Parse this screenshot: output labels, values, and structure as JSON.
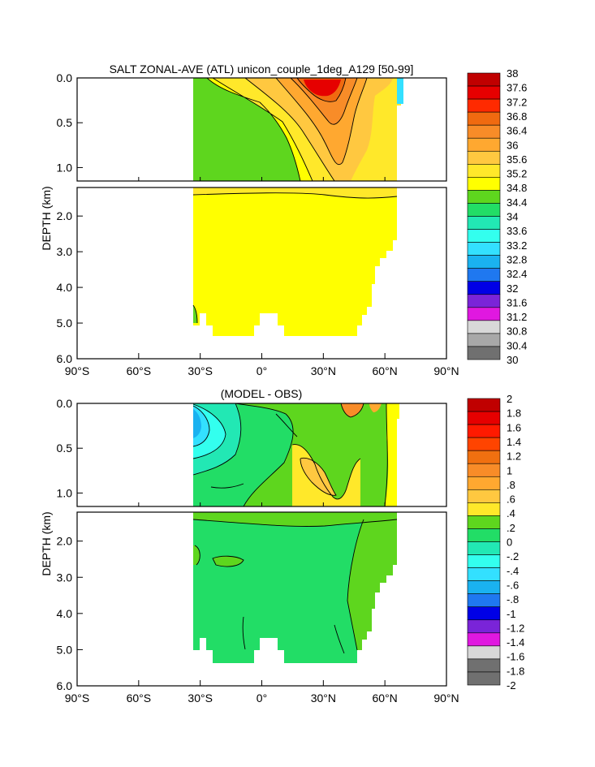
{
  "chart_data": [
    {
      "type": "contour",
      "title": "SALT ZONAL-AVE (ATL) unicon_couple_1deg_A129 [50-99]",
      "ylabel": "DEPTH (km)",
      "xlabel": "",
      "xlim": [
        -90,
        90
      ],
      "ylim_upper_panel": [
        0.0,
        1.15
      ],
      "ylim_lower_panel": [
        1.2,
        6.0
      ],
      "x_ticks": [
        -90,
        -60,
        -30,
        0,
        30,
        60,
        90
      ],
      "x_tick_labels": [
        "90°S",
        "60°S",
        "30°S",
        "0°",
        "30°N",
        "60°N",
        "90°N"
      ],
      "y_ticks_upper": [
        0.0,
        0.5,
        1.0
      ],
      "y_tick_labels_upper": [
        "0.0",
        "0.5",
        "1.0"
      ],
      "y_ticks_lower": [
        2.0,
        3.0,
        4.0,
        5.0,
        6.0
      ],
      "y_tick_labels_lower": [
        "2.0",
        "3.0",
        "4.0",
        "5.0",
        "6.0"
      ],
      "colorbar_levels": [
        "38",
        "37.6",
        "37.2",
        "36.8",
        "36.4",
        "36",
        "35.6",
        "35.2",
        "34.8",
        "34.4",
        "34",
        "33.6",
        "33.2",
        "32.8",
        "32.4",
        "32",
        "31.6",
        "31.2",
        "30.8",
        "30.4",
        "30"
      ],
      "colorbar_colors": [
        "#c00000",
        "#e60000",
        "#ff2a00",
        "#f06a10",
        "#f88c28",
        "#ffa830",
        "#ffc840",
        "#ffe82a",
        "#ffff00",
        "#5ed61e",
        "#22dd66",
        "#22e8b4",
        "#33ffee",
        "#33e0ff",
        "#1ab2f0",
        "#1f78f0",
        "#0000e6",
        "#7a24d8",
        "#e018e0",
        "#d8d8d8",
        "#a8a8a8",
        "#707070"
      ],
      "ocean_extent_lat": [
        -34,
        66
      ],
      "dominant_field": {
        "surface_max_near_lat": 25,
        "surface_max_value": 37.2,
        "deep_value_range": [
          34.8,
          35.2
        ],
        "southern_intermediate_range": [
          34.4,
          34.8
        ]
      }
    },
    {
      "type": "contour",
      "title": "(MODEL - OBS)",
      "ylabel": "DEPTH (km)",
      "xlabel": "",
      "xlim": [
        -90,
        90
      ],
      "ylim_upper_panel": [
        0.0,
        1.15
      ],
      "ylim_lower_panel": [
        1.2,
        6.0
      ],
      "x_ticks": [
        -90,
        -60,
        -30,
        0,
        30,
        60,
        90
      ],
      "x_tick_labels": [
        "90°S",
        "60°S",
        "30°S",
        "0°",
        "30°N",
        "60°N",
        "90°N"
      ],
      "y_ticks_upper": [
        0.0,
        0.5,
        1.0
      ],
      "y_tick_labels_upper": [
        "0.0",
        "0.5",
        "1.0"
      ],
      "y_ticks_lower": [
        2.0,
        3.0,
        4.0,
        5.0,
        6.0
      ],
      "y_tick_labels_lower": [
        "2.0",
        "3.0",
        "4.0",
        "5.0",
        "6.0"
      ],
      "colorbar_levels": [
        "2",
        "1.8",
        "1.6",
        "1.4",
        "1.2",
        "1",
        ".8",
        ".6",
        ".4",
        ".2",
        "0",
        "-.2",
        "-.4",
        "-.6",
        "-.8",
        "-1",
        "-1.2",
        "-1.4",
        "-1.6",
        "-1.8",
        "-2"
      ],
      "colorbar_colors": [
        "#c00000",
        "#e60000",
        "#ff1a00",
        "#ff4400",
        "#f07010",
        "#f88c28",
        "#ffa830",
        "#ffc840",
        "#ffe82a",
        "#5ed61e",
        "#22dd66",
        "#22e8b4",
        "#33ffee",
        "#33e0ff",
        "#1ab2f0",
        "#1f78f0",
        "#0000e6",
        "#7a24d8",
        "#e018e0",
        "#d8d8d8",
        "#707070",
        "#707070"
      ],
      "ocean_extent_lat": [
        -34,
        66
      ],
      "dominant_field": {
        "main_range": [
          0.0,
          0.2
        ],
        "positive_bias_near_lat": 30,
        "positive_bias_value": 0.6,
        "negative_bias_near_lat": -30,
        "negative_bias_value": -0.6
      }
    }
  ]
}
